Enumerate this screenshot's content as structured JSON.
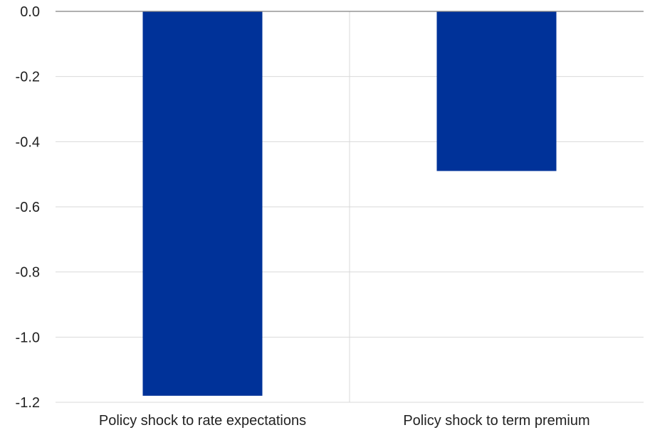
{
  "chart_data": {
    "type": "bar",
    "title": "",
    "xlabel": "",
    "ylabel": "",
    "categories": [
      "Policy shock to rate expectations",
      "Policy shock to term premium"
    ],
    "series": [
      {
        "values": [
          -1.18,
          -0.49
        ],
        "color": "#003299"
      }
    ],
    "ylim": [
      -1.2,
      0.0
    ],
    "yticks": [
      0.0,
      -0.2,
      -0.4,
      -0.6,
      -0.8,
      -1.0,
      -1.2
    ],
    "ytick_labels": [
      "0.0",
      "-0.2",
      "-0.4",
      "-0.6",
      "-0.8",
      "-1.0",
      "-1.2"
    ],
    "grid": true,
    "colors": {
      "bar": "#003299",
      "grid": "#d9d9d9",
      "axis": "#808080",
      "text": "#222222"
    }
  }
}
